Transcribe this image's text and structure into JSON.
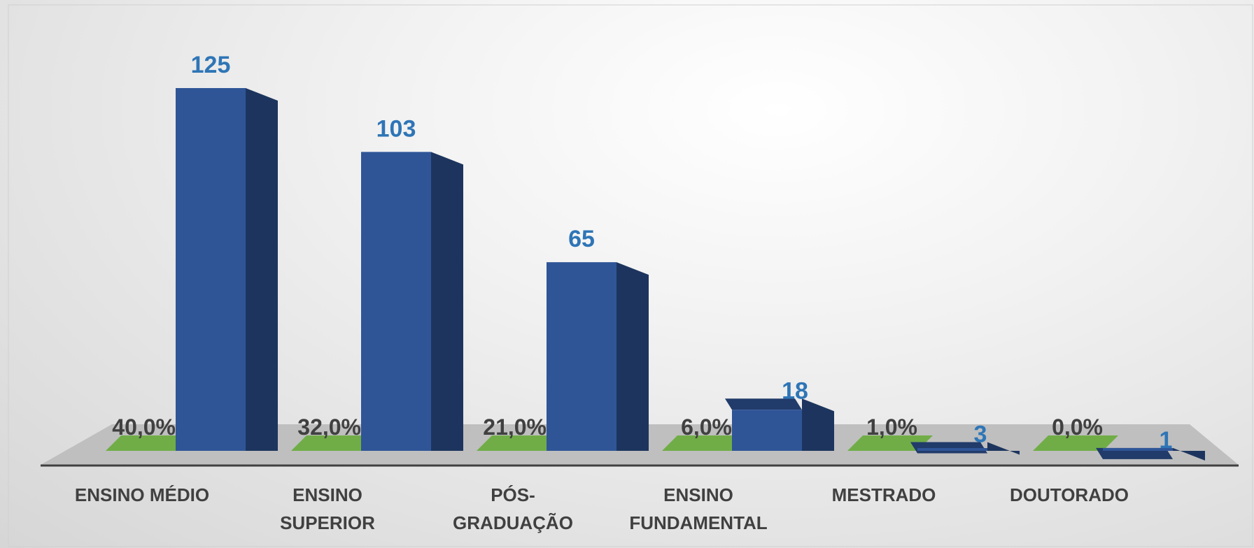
{
  "chart_data": {
    "type": "bar3d",
    "categories": [
      "ENSINO MÉDIO",
      "ENSINO SUPERIOR",
      "PÓS-GRADUAÇÃO",
      "ENSINO FUNDAMENTAL",
      "MESTRADO",
      "DOUTORADO"
    ],
    "series": [
      {
        "color": "#2f5597",
        "values": [
          125,
          103,
          65,
          18,
          3,
          1
        ]
      },
      {
        "color": "#70ad47",
        "values": [
          40,
          32,
          21,
          6,
          1,
          0
        ],
        "value_labels": [
          "40,0%",
          "32,0%",
          "21,0%",
          "6,0%",
          "1,0%",
          "0,0%"
        ]
      }
    ]
  }
}
